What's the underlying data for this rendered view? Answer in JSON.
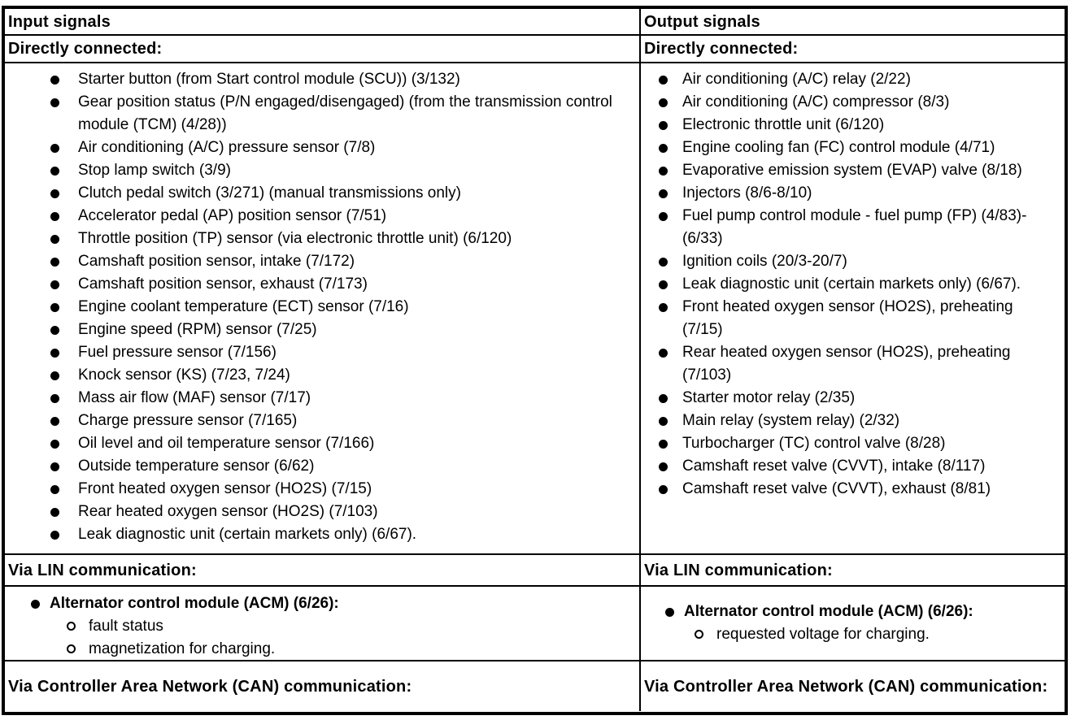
{
  "colors": {
    "text": "#000000",
    "background": "#ffffff",
    "border": "#000000"
  },
  "table": {
    "columns": [
      {
        "header": "Input signals",
        "directly_connected": {
          "label": "Directly connected:",
          "items": [
            "Starter button (from Start control module (SCU)) (3/132)",
            "Gear position status (P/N engaged/disengaged) (from the transmission control module (TCM) (4/28))",
            "Air conditioning (A/C) pressure sensor (7/8)",
            "Stop lamp switch (3/9)",
            "Clutch pedal switch (3/271) (manual transmissions only)",
            "Accelerator pedal (AP) position sensor (7/51)",
            "Throttle position (TP) sensor (via electronic throttle unit) (6/120)",
            "Camshaft position sensor, intake (7/172)",
            "Camshaft position sensor, exhaust (7/173)",
            "Engine coolant temperature (ECT) sensor (7/16)",
            "Engine speed (RPM) sensor (7/25)",
            "Fuel pressure sensor (7/156)",
            "Knock sensor (KS) (7/23, 7/24)",
            "Mass air flow (MAF) sensor (7/17)",
            "Charge pressure sensor (7/165)",
            "Oil level and oil temperature sensor (7/166)",
            "Outside temperature sensor (6/62)",
            "Front heated oxygen sensor (HO2S) (7/15)",
            "Rear heated oxygen sensor (HO2S) (7/103)",
            "Leak diagnostic unit (certain markets only) (6/67)."
          ]
        },
        "via_lin": {
          "label": "Via LIN communication:",
          "module": "Alternator control module (ACM) (6/26):",
          "sub_items": [
            "fault status",
            "magnetization for charging."
          ]
        },
        "via_can": {
          "label": "Via Controller Area Network (CAN) communication:"
        }
      },
      {
        "header": "Output signals",
        "directly_connected": {
          "label": "Directly connected:",
          "items": [
            "Air conditioning (A/C) relay (2/22)",
            "Air conditioning (A/C) compressor (8/3)",
            "Electronic throttle unit (6/120)",
            "Engine cooling fan (FC) control module (4/71)",
            "Evaporative emission system (EVAP) valve (8/18)",
            "Injectors (8/6-8/10)",
            "Fuel pump control module - fuel pump (FP) (4/83)-(6/33)",
            "Ignition coils (20/3-20/7)",
            "Leak diagnostic unit (certain markets only) (6/67).",
            "Front heated oxygen sensor (HO2S), preheating (7/15)",
            "Rear heated oxygen sensor (HO2S), preheating (7/103)",
            "Starter motor relay (2/35)",
            "Main relay (system relay) (2/32)",
            "Turbocharger (TC) control valve (8/28)",
            "Camshaft reset valve (CVVT), intake (8/117)",
            "Camshaft reset valve (CVVT), exhaust (8/81)"
          ]
        },
        "via_lin": {
          "label": "Via LIN communication:",
          "module": "Alternator control module (ACM) (6/26):",
          "sub_items": [
            "requested voltage for charging."
          ]
        },
        "via_can": {
          "label": "Via Controller Area Network (CAN) communication:"
        }
      }
    ]
  }
}
